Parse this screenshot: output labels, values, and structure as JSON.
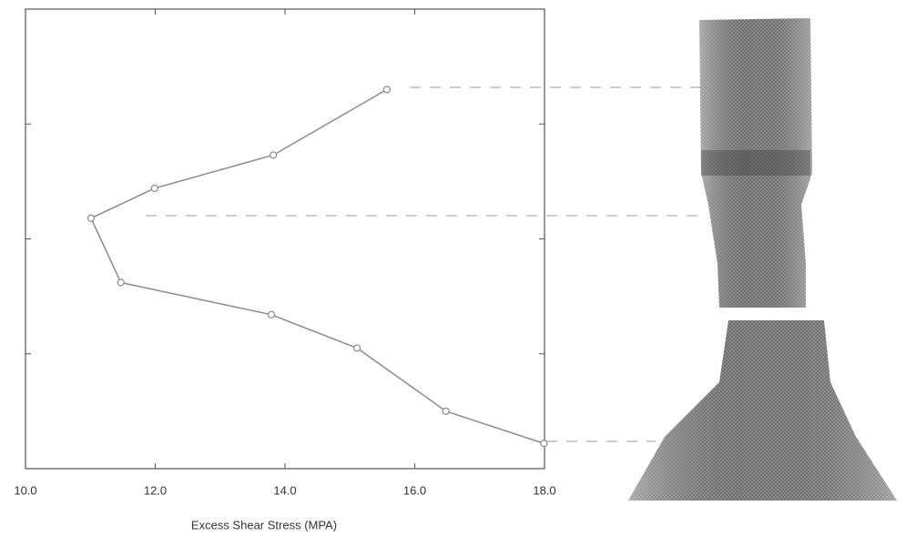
{
  "chart_data": {
    "type": "line",
    "x_label": "Excess Shear Stress (MPA)",
    "x": [
      15.57,
      13.82,
      11.99,
      11.01,
      11.47,
      13.79,
      15.11,
      16.48,
      17.99
    ],
    "values": [
      3.3,
      2.73,
      2.44,
      2.18,
      1.62,
      1.34,
      1.05,
      0.5,
      0.22
    ],
    "color": "#8a8a8a",
    "xlim": [
      10,
      18
    ],
    "xticks": [
      {
        "value": 10,
        "label": "10.0"
      },
      {
        "value": 12,
        "label": "12.0"
      },
      {
        "value": 14,
        "label": "14.0"
      },
      {
        "value": 16,
        "label": "16.0"
      },
      {
        "value": 18,
        "label": "18.0"
      }
    ],
    "ylim": [
      0,
      4
    ],
    "yticks": [
      1,
      2,
      3
    ]
  }
}
